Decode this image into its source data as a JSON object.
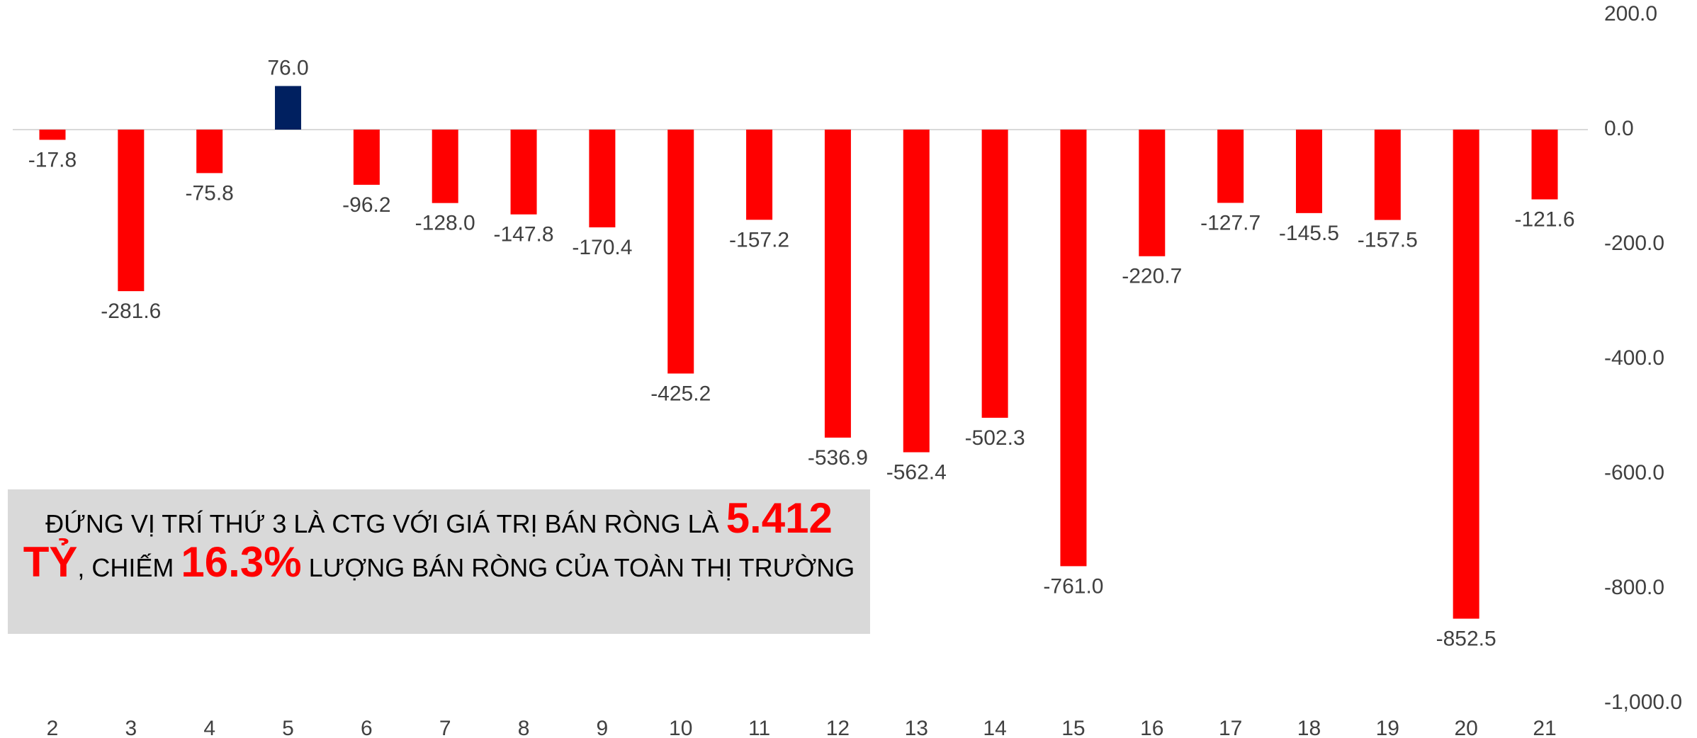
{
  "chart_data": {
    "type": "bar",
    "categories": [
      "2",
      "3",
      "4",
      "5",
      "6",
      "7",
      "8",
      "9",
      "10",
      "11",
      "12",
      "13",
      "14",
      "15",
      "16",
      "17",
      "18",
      "19",
      "20",
      "21"
    ],
    "values": [
      -17.8,
      -281.6,
      -75.8,
      76.0,
      -96.2,
      -128.0,
      -147.8,
      -170.4,
      -425.2,
      -157.2,
      -536.9,
      -562.4,
      -502.3,
      -761.0,
      -220.7,
      -127.7,
      -145.5,
      -157.5,
      -852.5,
      -121.6
    ],
    "value_labels": [
      "-17.8",
      "-281.6",
      "-75.8",
      "76.0",
      "-96.2",
      "-128.0",
      "-147.8",
      "-170.4",
      "-425.2",
      "-157.2",
      "-536.9",
      "-562.4",
      "-502.3",
      "-761.0",
      "-220.7",
      "-127.7",
      "-145.5",
      "-157.5",
      "-852.5",
      "-121.6"
    ],
    "positive_color": "#002060",
    "negative_color": "#ff0000",
    "ylim": [
      -1000,
      200
    ],
    "yticks": [
      {
        "value": 200,
        "label": "200.0"
      },
      {
        "value": 0,
        "label": "0.0"
      },
      {
        "value": -200,
        "label": "-200.0"
      },
      {
        "value": -400,
        "label": "-400.0"
      },
      {
        "value": -600,
        "label": "-600.0"
      },
      {
        "value": -800,
        "label": "-800.0"
      },
      {
        "value": -1000,
        "label": "-1,000.0"
      }
    ],
    "grid": false,
    "annotation": {
      "text_1": "ĐỨNG VỊ TRÍ THỨ 3 LÀ CTG  VỚI GIÁ TRỊ BÁN RÒNG LÀ ",
      "highlight_1": "5.412 TỶ",
      "text_2": ", CHIẾM ",
      "highlight_2": "16.3%",
      "text_3": " LƯỢNG BÁN RÒNG CỦA TOÀN THỊ TRƯỜNG"
    }
  }
}
